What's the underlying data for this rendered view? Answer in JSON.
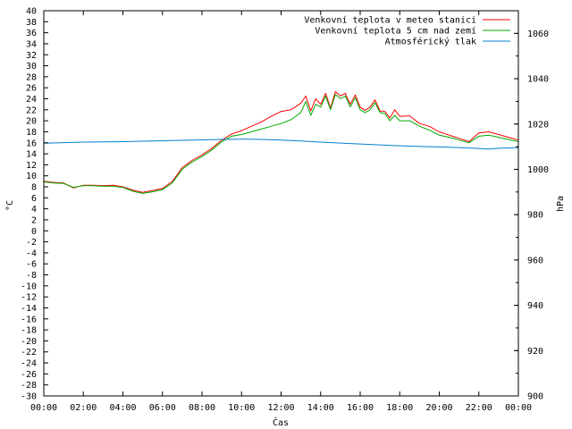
{
  "chart_data": {
    "type": "line",
    "xlabel": "Čas",
    "ylabel_left": "°C",
    "ylabel_right": "hPa",
    "x_ticks": [
      "00:00",
      "02:00",
      "04:00",
      "06:00",
      "08:00",
      "10:00",
      "12:00",
      "14:00",
      "16:00",
      "18:00",
      "20:00",
      "22:00",
      "00:00"
    ],
    "x_range_hours": [
      0,
      24
    ],
    "ylim_left": [
      -30,
      40
    ],
    "y_ticks_left": [
      "40",
      "38",
      "36",
      "34",
      "32",
      "30",
      "28",
      "26",
      "24",
      "22",
      "20",
      "18",
      "16",
      "14",
      "12",
      "10",
      "8",
      "6",
      "4",
      "2",
      "0",
      "-2",
      "-4",
      "-6",
      "-8",
      "-10",
      "-12",
      "-14",
      "-16",
      "-18",
      "-20",
      "-22",
      "-24",
      "-26",
      "-28",
      "-30"
    ],
    "ylim_right": [
      900,
      1070
    ],
    "y_ticks_right": [
      "1060",
      "1040",
      "1020",
      "1000",
      "980",
      "960",
      "940",
      "920",
      "900"
    ],
    "grid": false,
    "legend_position": "top-right",
    "series": [
      {
        "name": "Venkovní teplota v meteo stanici",
        "color": "#ff0000",
        "axis": "left",
        "x": [
          0,
          0.5,
          1,
          1.5,
          2,
          2.5,
          3,
          3.5,
          4,
          4.5,
          5,
          5.5,
          6,
          6.5,
          7,
          7.5,
          8,
          8.5,
          9,
          9.5,
          10,
          10.5,
          11,
          11.5,
          12,
          12.5,
          13,
          13.25,
          13.5,
          13.75,
          14,
          14.25,
          14.5,
          14.75,
          15,
          15.25,
          15.5,
          15.75,
          16,
          16.25,
          16.5,
          16.75,
          17,
          17.25,
          17.5,
          17.75,
          18,
          18.5,
          19,
          19.5,
          20,
          20.5,
          21,
          21.5,
          22,
          22.5,
          23,
          23.5,
          24
        ],
        "values": [
          9.0,
          8.8,
          8.7,
          7.8,
          8.3,
          8.3,
          8.2,
          8.3,
          8.0,
          7.4,
          7.0,
          7.3,
          7.7,
          9.0,
          11.5,
          12.8,
          13.8,
          15.0,
          16.5,
          17.6,
          18.2,
          19.0,
          19.8,
          20.8,
          21.7,
          22.0,
          23.2,
          24.5,
          21.8,
          24.0,
          23.0,
          25.0,
          22.3,
          25.3,
          24.5,
          25.0,
          23.0,
          24.7,
          22.5,
          21.9,
          22.5,
          23.8,
          21.8,
          21.7,
          20.5,
          22.0,
          20.8,
          20.9,
          19.5,
          19.0,
          18.0,
          17.4,
          16.8,
          16.2,
          17.8,
          18.0,
          17.5,
          17.0,
          16.5
        ]
      },
      {
        "name": "Venkovní teplota 5 cm nad zemí",
        "color": "#00aa00",
        "axis": "left",
        "x": [
          0,
          0.5,
          1,
          1.5,
          2,
          2.5,
          3,
          3.5,
          4,
          4.5,
          5,
          5.5,
          6,
          6.5,
          7,
          7.5,
          8,
          8.5,
          9,
          9.5,
          10,
          10.5,
          11,
          11.5,
          12,
          12.5,
          13,
          13.25,
          13.5,
          13.75,
          14,
          14.25,
          14.5,
          14.75,
          15,
          15.25,
          15.5,
          15.75,
          16,
          16.25,
          16.5,
          16.75,
          17,
          17.25,
          17.5,
          17.75,
          18,
          18.5,
          19,
          19.5,
          20,
          20.5,
          21,
          21.5,
          22,
          22.5,
          23,
          23.5,
          24
        ],
        "values": [
          8.9,
          8.7,
          8.6,
          7.9,
          8.2,
          8.2,
          8.1,
          8.1,
          7.9,
          7.2,
          6.8,
          7.1,
          7.5,
          8.7,
          11.2,
          12.5,
          13.5,
          14.7,
          16.2,
          17.2,
          17.5,
          18.0,
          18.5,
          19.0,
          19.5,
          20.2,
          21.5,
          23.5,
          21.0,
          23.0,
          22.5,
          24.5,
          22.0,
          24.8,
          24.0,
          24.5,
          22.5,
          24.2,
          22.0,
          21.5,
          22.0,
          23.3,
          21.5,
          21.3,
          20.0,
          21.0,
          20.0,
          20.0,
          19.0,
          18.3,
          17.4,
          17.0,
          16.5,
          16.0,
          17.2,
          17.4,
          17.0,
          16.6,
          16.2
        ]
      },
      {
        "name": "Atmosférický tlak",
        "color": "#0080d0",
        "axis": "right",
        "x": [
          0,
          1,
          2,
          3,
          4,
          5,
          6,
          7,
          8,
          9,
          10,
          10.5,
          11,
          12,
          13,
          14,
          15,
          16,
          17,
          18,
          19,
          20,
          21,
          22,
          22.5,
          23,
          24
        ],
        "values": [
          1011.5,
          1011.8,
          1012.0,
          1012.1,
          1012.2,
          1012.4,
          1012.6,
          1012.8,
          1013.0,
          1013.2,
          1013.3,
          1013.3,
          1013.2,
          1012.9,
          1012.5,
          1012.0,
          1011.6,
          1011.2,
          1010.8,
          1010.4,
          1010.1,
          1009.9,
          1009.6,
          1009.2,
          1009.0,
          1009.3,
          1009.6
        ]
      }
    ]
  }
}
